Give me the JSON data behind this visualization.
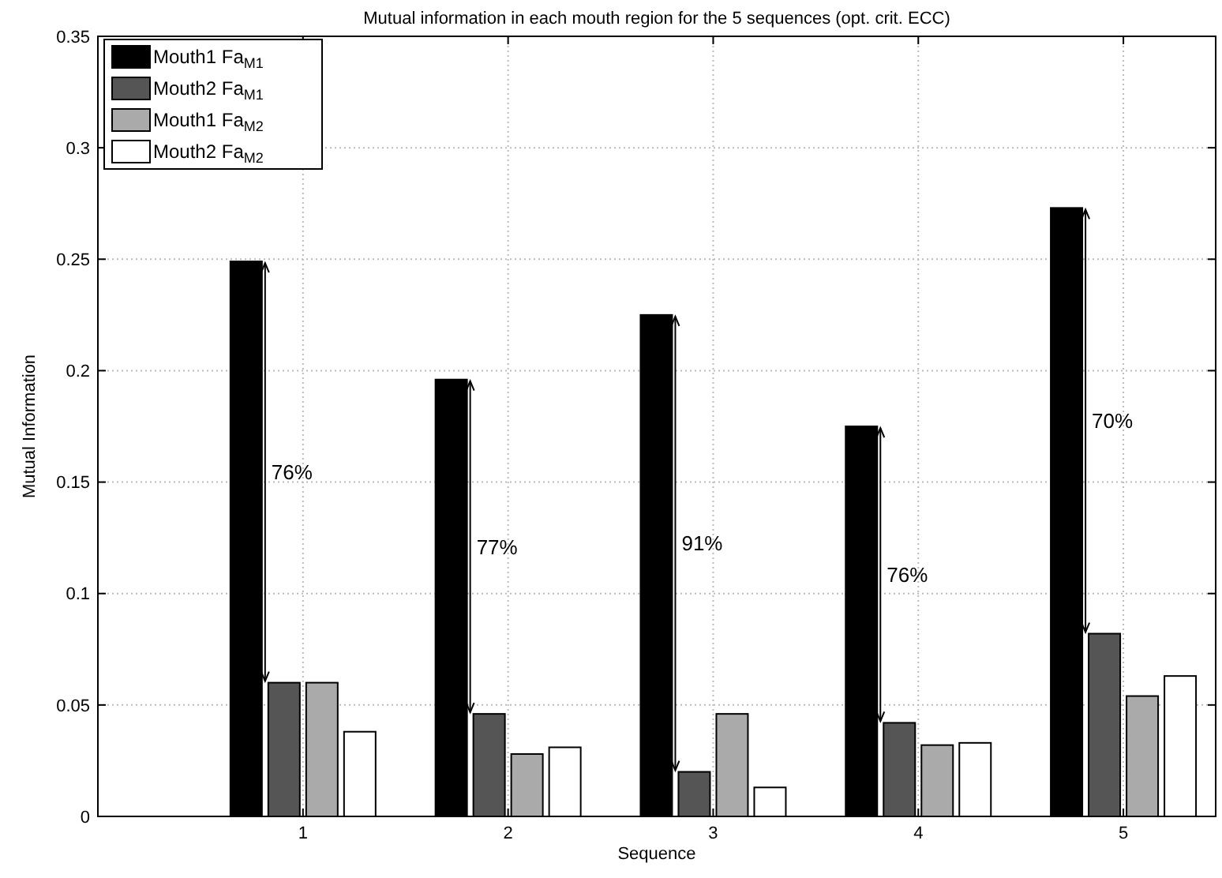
{
  "chart_data": {
    "type": "bar",
    "title": "Mutual information in each mouth region for the 5 sequences (opt. crit. ECC)",
    "xlabel": "Sequence",
    "ylabel": "Mutual Information",
    "categories": [
      "1",
      "2",
      "3",
      "4",
      "5"
    ],
    "series": [
      {
        "name": "Mouth1 Fa$_{M1}$",
        "color": "#000000",
        "values": [
          0.249,
          0.196,
          0.225,
          0.175,
          0.273
        ]
      },
      {
        "name": "Mouth2 Fa$_{M1}$",
        "color": "#555555",
        "values": [
          0.06,
          0.046,
          0.02,
          0.042,
          0.082
        ]
      },
      {
        "name": "Mouth1 Fa$_{M2}$",
        "color": "#aaaaaa",
        "values": [
          0.06,
          0.028,
          0.046,
          0.032,
          0.054
        ]
      },
      {
        "name": "Mouth2 Fa$_{M2}$",
        "color": "#ffffff",
        "values": [
          0.038,
          0.031,
          0.013,
          0.033,
          0.063
        ]
      }
    ],
    "ylim": [
      0,
      0.35
    ],
    "yticks": [
      0,
      0.05,
      0.1,
      0.15,
      0.2,
      0.25,
      0.3,
      0.35
    ],
    "annotations": [
      "76%",
      "77%",
      "91%",
      "76%",
      "70%"
    ],
    "grid": true,
    "legend": "top left"
  }
}
